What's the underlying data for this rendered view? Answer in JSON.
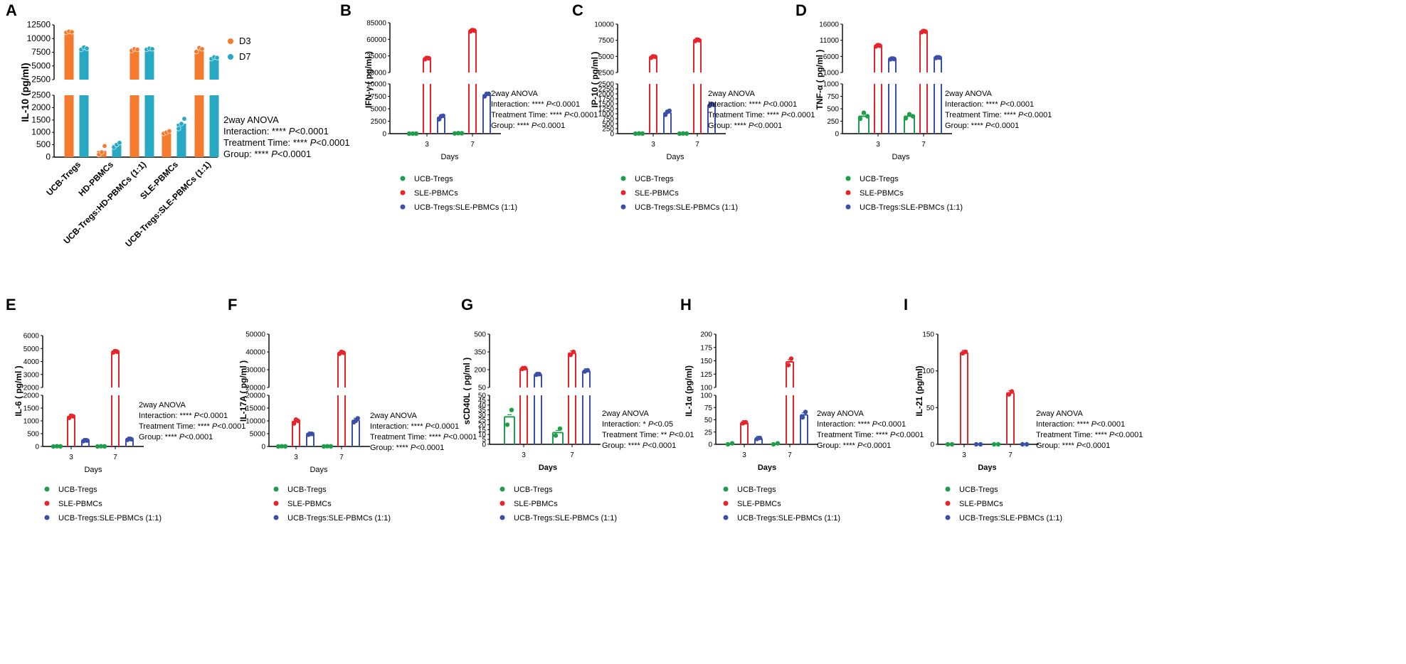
{
  "colors": {
    "D3": "#F47A2E",
    "D7": "#27A9C3",
    "ucb": "#1E9E4A",
    "sle": "#E8242A",
    "mix": "#3C4FA8"
  },
  "legend_groups": [
    "UCB-Tregs",
    "SLE-PBMCs",
    "UCB-Tregs:SLE-PBMCs (1:1)"
  ],
  "chart_data": [
    {
      "panel": "A",
      "type": "bar",
      "ylabel": "IL-10 (pg/ml)",
      "categories": [
        "UCB-Tregs",
        "HD-PBMCs",
        "UCB-Tregs:HD-PBMCs (1:1)",
        "SLE-PBMCs",
        "UCB-Tregs:SLE-PBMCs (1:1)"
      ],
      "series": [
        {
          "name": "D3",
          "color": "#F47A2E",
          "values": [
            11200,
            250,
            8000,
            1000,
            8000
          ],
          "points": [
            [
              11100,
              11300,
              11200
            ],
            [
              100,
              200,
              450
            ],
            [
              7800,
              8100,
              8000
            ],
            [
              950,
              1000,
              1050
            ],
            [
              7600,
              8300,
              8100
            ]
          ]
        },
        {
          "name": "D7",
          "color": "#27A9C3",
          "values": [
            8200,
            500,
            8100,
            1350,
            6500
          ],
          "points": [
            [
              8000,
              8400,
              8200
            ],
            [
              400,
              500,
              580
            ],
            [
              8000,
              8200,
              8100
            ],
            [
              1150,
              1350,
              1550
            ],
            [
              6300,
              6600,
              6500
            ]
          ]
        }
      ],
      "axis": {
        "lower": [
          0,
          2500
        ],
        "upper": [
          2500,
          12500
        ],
        "ticks": [
          "0",
          "500",
          "1000",
          "1500",
          "2000",
          "2500",
          "2500",
          "5000",
          "7500",
          "10000",
          "12500"
        ]
      },
      "stats": [
        "2way ANOVA",
        "Interaction: **** P<0.0001",
        "Treatment Time: **** P<0.0001",
        "Group: **** P<0.0001"
      ]
    },
    {
      "panel": "B",
      "type": "bar",
      "ylabel": "IFN-γ ( pg/ml )",
      "xlabel": "Days",
      "categories": [
        "3",
        "7"
      ],
      "series": [
        {
          "name": "UCB-Tregs",
          "values": [
            10,
            80
          ],
          "points": [
            [
              0,
              15,
              10
            ],
            [
              50,
              100,
              80
            ]
          ]
        },
        {
          "name": "SLE-PBMCs",
          "values": [
            31000,
            73000
          ],
          "points": [
            [
              30000,
              32000,
              31500
            ],
            [
              72000,
              74000,
              73000
            ]
          ]
        },
        {
          "name": "UCB-Tregs:SLE-PBMCs (1:1)",
          "values": [
            3300,
            7800
          ],
          "points": [
            [
              2900,
              3500,
              3600
            ],
            [
              7500,
              8000,
              8000
            ]
          ]
        }
      ],
      "axis": {
        "lower": [
          0,
          10000
        ],
        "upper": [
          10000,
          85000
        ],
        "ticks": [
          "0",
          "2500",
          "5000",
          "7500",
          "10000",
          "10000",
          "35000",
          "60000",
          "85000"
        ]
      },
      "stats": [
        "2way ANOVA",
        "Interaction: **** P<0.0001",
        "Treatment Time: **** P<0.0001",
        "Group: **** P<0.0001"
      ]
    },
    {
      "panel": "C",
      "type": "bar",
      "ylabel": "IP-10 ( pg/ml )",
      "xlabel": "Days",
      "categories": [
        "3",
        "7"
      ],
      "series": [
        {
          "name": "UCB-Tregs",
          "values": [
            5,
            5
          ],
          "points": [
            [
              0,
              10,
              5
            ],
            [
              0,
              10,
              5
            ]
          ]
        },
        {
          "name": "SLE-PBMCs",
          "values": [
            4900,
            7500
          ],
          "points": [
            [
              4800,
              5000,
              4950
            ],
            [
              7400,
              7600,
              7500
            ]
          ]
        },
        {
          "name": "UCB-Tregs:SLE-PBMCs (1:1)",
          "values": [
            1050,
            1450
          ],
          "points": [
            [
              950,
              1100,
              1150
            ],
            [
              1400,
              1500,
              1450
            ]
          ]
        }
      ],
      "axis": {
        "lower": [
          0,
          2500
        ],
        "upper": [
          2500,
          10000
        ],
        "ticks": [
          "0",
          "250",
          "500",
          "750",
          "1000",
          "1250",
          "1500",
          "1750",
          "2000",
          "2250",
          "2500",
          "2500",
          "5000",
          "7500",
          "10000"
        ]
      },
      "stats": [
        "2way ANOVA",
        "Interaction: **** P<0.0001",
        "Treatment Time: **** P<0.0001",
        "Group: **** P<0.0001"
      ]
    },
    {
      "panel": "D",
      "type": "bar",
      "ylabel": "TNF-α ( pg/ml )",
      "xlabel": "Days",
      "categories": [
        "3",
        "7"
      ],
      "series": [
        {
          "name": "UCB-Tregs",
          "values": [
            350,
            350
          ],
          "points": [
            [
              300,
              420,
              350
            ],
            [
              310,
              390,
              350
            ]
          ]
        },
        {
          "name": "SLE-PBMCs",
          "values": [
            9300,
            13700
          ],
          "points": [
            [
              9100,
              9500,
              9300
            ],
            [
              13500,
              13900,
              13700
            ]
          ]
        },
        {
          "name": "UCB-Tregs:SLE-PBMCs (1:1)",
          "values": [
            5200,
            5600
          ],
          "points": [
            [
              5100,
              5300,
              5200
            ],
            [
              5500,
              5700,
              5600
            ]
          ]
        }
      ],
      "axis": {
        "lower": [
          0,
          1000
        ],
        "upper": [
          1000,
          16000
        ],
        "ticks": [
          "0",
          "250",
          "500",
          "750",
          "1000",
          "1000",
          "6000",
          "11000",
          "16000"
        ]
      },
      "stats": [
        "2way ANOVA",
        "Interaction: **** P<0.0001",
        "Treatment Time: **** P<0.0001",
        "Group: **** P<0.0001"
      ]
    },
    {
      "panel": "E",
      "type": "bar",
      "ylabel": "IL-6 ( pg/ml )",
      "xlabel": "Days",
      "categories": [
        "3",
        "7"
      ],
      "series": [
        {
          "name": "UCB-Tregs",
          "values": [
            5,
            5
          ],
          "points": [
            [
              0,
              10,
              5
            ],
            [
              0,
              10,
              5
            ]
          ]
        },
        {
          "name": "SLE-PBMCs",
          "values": [
            1170,
            4750
          ],
          "points": [
            [
              1120,
              1200,
              1180
            ],
            [
              4700,
              4800,
              4750
            ]
          ]
        },
        {
          "name": "UCB-Tregs:SLE-PBMCs (1:1)",
          "values": [
            230,
            280
          ],
          "points": [
            [
              210,
              240,
              230
            ],
            [
              260,
              300,
              280
            ]
          ]
        }
      ],
      "axis": {
        "lower": [
          0,
          2000
        ],
        "upper": [
          2000,
          6000
        ],
        "ticks": [
          "0",
          "500",
          "1000",
          "1500",
          "2000",
          "2000",
          "3000",
          "4000",
          "5000",
          "6000"
        ]
      },
      "stats": [
        "2way ANOVA",
        "Interaction: **** P<0.0001",
        "Treatment Time: **** P<0.0001",
        "Group: **** P<0.0001"
      ]
    },
    {
      "panel": "F",
      "type": "bar",
      "ylabel": "IL-17A ( pg/ml )",
      "xlabel": "Days",
      "categories": [
        "3",
        "7"
      ],
      "series": [
        {
          "name": "UCB-Tregs",
          "values": [
            50,
            50
          ],
          "points": [
            [
              0,
              100,
              50
            ],
            [
              0,
              100,
              50
            ]
          ]
        },
        {
          "name": "SLE-PBMCs",
          "values": [
            9800,
            39500
          ],
          "points": [
            [
              9000,
              10500,
              10000
            ],
            [
              39000,
              40000,
              39500
            ]
          ]
        },
        {
          "name": "UCB-Tregs:SLE-PBMCs (1:1)",
          "values": [
            4800,
            10200
          ],
          "points": [
            [
              4600,
              4900,
              4900
            ],
            [
              9500,
              10000,
              11000
            ]
          ]
        }
      ],
      "axis": {
        "lower": [
          0,
          20000
        ],
        "upper": [
          20000,
          50000
        ],
        "ticks": [
          "0",
          "5000",
          "10000",
          "15000",
          "20000",
          "20000",
          "30000",
          "40000",
          "50000"
        ]
      },
      "stats": [
        "2way ANOVA",
        "Interaction: **** P<0.0001",
        "Treatment Time: **** P<0.0001",
        "Group: **** P<0.0001"
      ]
    },
    {
      "panel": "G",
      "type": "bar",
      "ylabel": "sCD40L ( pg/ml )",
      "xlabel": "Days",
      "categories": [
        "3",
        "7"
      ],
      "series": [
        {
          "name": "UCB-Tregs",
          "values": [
            28,
            12
          ],
          "points": [
            [
              20,
              35
            ],
            [
              9,
              16
            ]
          ]
        },
        {
          "name": "SLE-PBMCs",
          "values": [
            210,
            340
          ],
          "points": [
            [
              207,
              213
            ],
            [
              325,
              350
            ]
          ]
        },
        {
          "name": "UCB-Tregs:SLE-PBMCs (1:1)",
          "values": [
            160,
            190
          ],
          "points": [
            [
              158,
              162
            ],
            [
              185,
              195
            ]
          ]
        }
      ],
      "axis": {
        "lower": [
          0,
          50
        ],
        "upper": [
          50,
          500
        ],
        "ticks": [
          "0",
          "5",
          "10",
          "15",
          "20",
          "25",
          "30",
          "35",
          "40",
          "45",
          "50",
          "50",
          "200",
          "350",
          "500"
        ]
      },
      "stats": [
        "2way ANOVA",
        "Interaction: * P<0.05",
        "Treatment Time: ** P<0.01",
        "Group: **** P<0.0001"
      ]
    },
    {
      "panel": "H",
      "type": "bar",
      "ylabel": "IL-1α (pg/ml)",
      "xlabel": "Days",
      "categories": [
        "3",
        "7"
      ],
      "series": [
        {
          "name": "UCB-Tregs",
          "values": [
            1,
            1
          ],
          "points": [
            [
              0,
              2
            ],
            [
              0,
              2
            ]
          ]
        },
        {
          "name": "SLE-PBMCs",
          "values": [
            44,
            148
          ],
          "points": [
            [
              43,
              45
            ],
            [
              142,
              154
            ]
          ]
        },
        {
          "name": "UCB-Tregs:SLE-PBMCs (1:1)",
          "values": [
            12,
            60
          ],
          "points": [
            [
              11,
              13
            ],
            [
              55,
              66
            ]
          ]
        }
      ],
      "axis": {
        "lower": [
          0,
          100
        ],
        "upper": [
          100,
          200
        ],
        "ticks": [
          "0",
          "25",
          "50",
          "75",
          "100",
          "100",
          "125",
          "150",
          "175",
          "200"
        ]
      },
      "stats": [
        "2way ANOVA",
        "Interaction: **** P<0.0001",
        "Treatment Time: **** P<0.0001",
        "Group: **** P<0.0001"
      ]
    },
    {
      "panel": "I",
      "type": "bar",
      "ylabel": "IL-21 (pg/ml)",
      "xlabel": "Days",
      "categories": [
        "3",
        "7"
      ],
      "series": [
        {
          "name": "UCB-Tregs",
          "values": [
            0,
            0
          ],
          "points": [
            [
              0,
              0
            ],
            [
              0,
              0
            ]
          ]
        },
        {
          "name": "SLE-PBMCs",
          "values": [
            125,
            70
          ],
          "points": [
            [
              124,
              126
            ],
            [
              68,
              72
            ]
          ]
        },
        {
          "name": "UCB-Tregs:SLE-PBMCs (1:1)",
          "values": [
            0,
            0
          ],
          "points": [
            [
              0,
              0
            ],
            [
              0,
              0
            ]
          ]
        }
      ],
      "axis": {
        "lower": [
          0,
          150
        ],
        "upper": null,
        "ticks": [
          "0",
          "50",
          "100",
          "150"
        ]
      },
      "stats": [
        "2way ANOVA",
        "Interaction: **** P<0.0001",
        "Treatment Time: **** P<0.0001",
        "Group: **** P<0.0001"
      ]
    }
  ]
}
